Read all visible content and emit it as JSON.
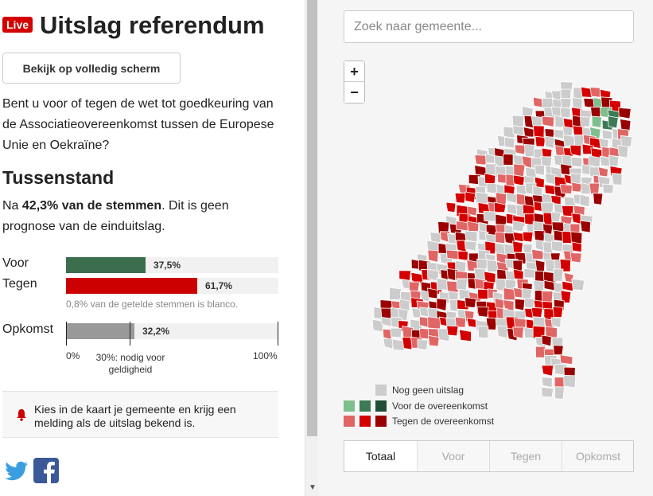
{
  "header": {
    "live_badge": "Live",
    "title": "Uitslag referendum",
    "full_screen_label": "Bekijk op volledig scherm"
  },
  "question": "Bent u voor of tegen de wet tot goedkeuring van de Associatieovereenkomst tussen de Europese Unie en Oekraïne?",
  "interim": {
    "heading": "Tussenstand",
    "count_prefix": "Na ",
    "count_bold": "42,3% van de stemmen",
    "count_suffix": ". Dit is geen prognose van de einduitslag."
  },
  "results": {
    "voor": {
      "label": "Voor",
      "value_label": "37,5%",
      "percent": 37.5,
      "color": "#3b6e4c"
    },
    "tegen": {
      "label": "Tegen",
      "value_label": "61,7%",
      "percent": 61.7,
      "color": "#cc0000"
    },
    "blank_note": "0,8% van de getelde stemmen is blanco."
  },
  "turnout": {
    "label": "Opkomst",
    "value_label": "32,2%",
    "percent": 32.2,
    "color": "#999999",
    "threshold_percent": 30,
    "axis_min": "0%",
    "axis_max": "100%",
    "threshold_label_line1": "30%: nodig voor",
    "threshold_label_line2": "geldigheid"
  },
  "notify": {
    "text": "Kies in de kaart je gemeente en krijg een melding als de uitslag bekend is."
  },
  "social": {
    "twitter_icon": "twitter-icon",
    "facebook_icon": "facebook-icon"
  },
  "map": {
    "search_placeholder": "Zoek naar gemeente...",
    "zoom_in": "+",
    "zoom_out": "−",
    "legend": {
      "none": {
        "label": "Nog geen uitslag",
        "color": "#cccccc"
      },
      "voor": {
        "label": "Voor de overeenkomst",
        "colors": [
          "#7fbf8e",
          "#3b7a55",
          "#1f4f35"
        ]
      },
      "tegen": {
        "label": "Tegen de overeenkomst",
        "colors": [
          "#e06666",
          "#d40000",
          "#9a0000"
        ]
      }
    },
    "tabs": [
      "Totaal",
      "Voor",
      "Tegen",
      "Opkomst"
    ],
    "active_tab": "Totaal"
  }
}
